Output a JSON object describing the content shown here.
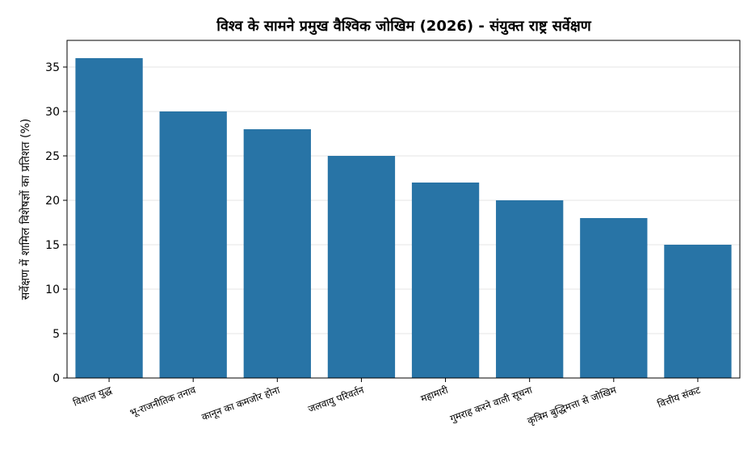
{
  "chart_data": {
    "type": "bar",
    "title": "विश्व के सामने प्रमुख वैश्विक जोखिम (2026) - संयुक्त राष्ट्र सर्वेक्षण",
    "xlabel": "",
    "ylabel": "सर्वेक्षण में शामिल विशेषज्ञों का प्रतिशत (%)",
    "categories": [
      "विशाल युद्ध",
      "भू-राजनीतिक तनाव",
      "कानून का कमजोर होना",
      "जलवायु परिवर्तन",
      "महामारी",
      "गुमराह करने वाली सूचना",
      "कृत्रिम बुद्धिमत्ता से जोखिम",
      "वित्तीय संकट"
    ],
    "values": [
      36,
      30,
      28,
      25,
      22,
      20,
      18,
      15
    ],
    "ylim": [
      0,
      38
    ],
    "yticks": [
      "0",
      "5",
      "10",
      "15",
      "20",
      "25",
      "30",
      "35"
    ],
    "bar_color": "#2874a6",
    "grid": true,
    "legend": "none"
  }
}
